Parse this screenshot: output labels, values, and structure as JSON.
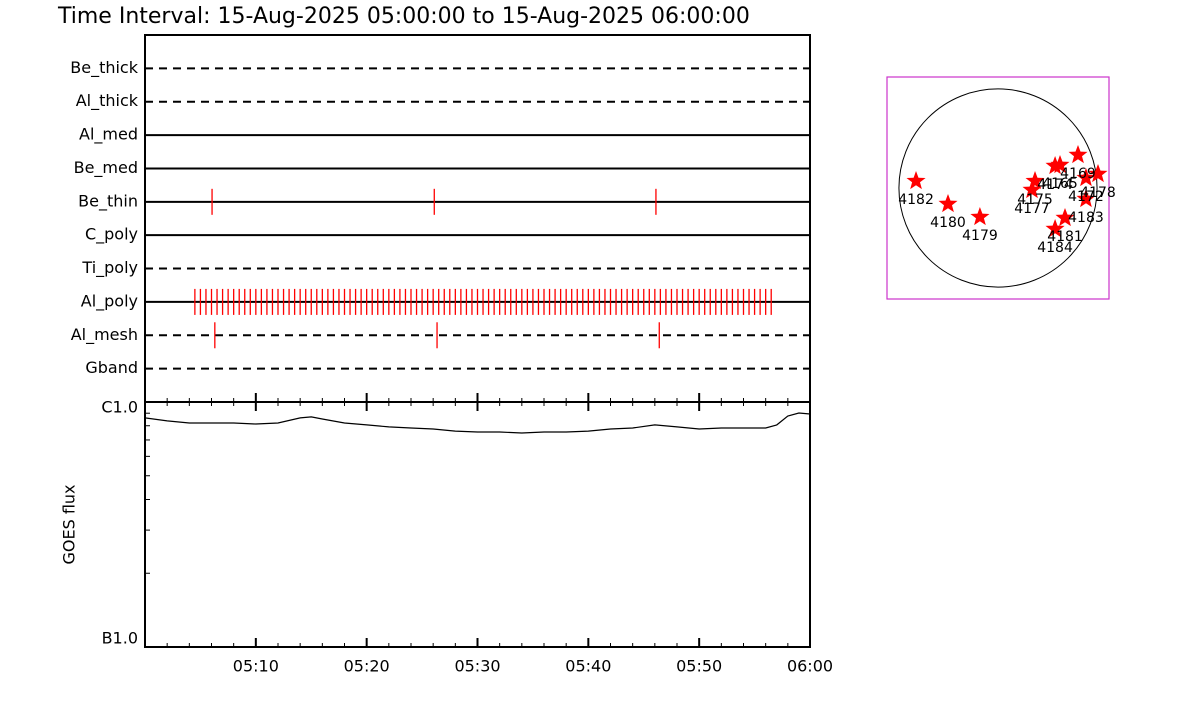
{
  "chart_data": [
    {
      "type": "timeline",
      "title": "Time Interval: 15-Aug-2025 05:00:00 to 15-Aug-2025 06:00:00",
      "xlim": [
        0,
        60
      ],
      "color": "#ff0000",
      "series": [
        {
          "name": "Be_thick",
          "line": "dashed",
          "x": []
        },
        {
          "name": "Al_thick",
          "line": "dashed",
          "x": []
        },
        {
          "name": "Al_med",
          "line": "solid",
          "x": []
        },
        {
          "name": "Be_med",
          "line": "solid",
          "x": []
        },
        {
          "name": "Be_thin",
          "line": "solid",
          "x": [
            6.05,
            26.1,
            46.1
          ]
        },
        {
          "name": "C_poly",
          "line": "solid",
          "x": []
        },
        {
          "name": "Ti_poly",
          "line": "dashed",
          "x": []
        },
        {
          "name": "Al_poly",
          "line": "solid",
          "x": [
            4.5,
            5,
            5.5,
            6,
            6.5,
            7,
            7.5,
            8,
            8.5,
            9,
            9.5,
            10,
            10.5,
            11,
            11.5,
            12,
            12.5,
            13,
            13.5,
            14,
            14.5,
            15,
            15.5,
            16,
            16.5,
            17,
            17.5,
            18,
            18.5,
            19,
            19.5,
            20,
            20.5,
            21,
            21.5,
            22,
            22.5,
            23,
            23.5,
            24,
            24.5,
            25,
            25.5,
            26,
            26.5,
            27,
            27.5,
            28,
            28.5,
            29,
            29.5,
            30,
            30.5,
            31,
            31.5,
            32,
            32.5,
            33,
            33.5,
            34,
            34.5,
            35,
            35.5,
            36,
            36.5,
            37,
            37.5,
            38,
            38.5,
            39,
            39.5,
            40,
            40.5,
            41,
            41.5,
            42,
            42.5,
            43,
            43.5,
            44,
            44.5,
            45,
            45.5,
            46,
            46.5,
            47,
            47.5,
            48,
            48.5,
            49,
            49.5,
            50,
            50.5,
            51,
            51.5,
            52,
            52.5,
            53,
            53.5,
            54,
            54.5,
            55,
            55.5,
            56,
            56.5
          ]
        },
        {
          "name": "Al_mesh",
          "line": "dashed",
          "x": [
            6.3,
            26.35,
            46.4
          ]
        },
        {
          "name": "Gband",
          "line": "dashed",
          "x": []
        }
      ]
    },
    {
      "type": "line",
      "ylabel": "GOES flux",
      "log_scale": true,
      "color": "#000000",
      "xlim": [
        0,
        60
      ],
      "xticks": [
        {
          "value": 10,
          "label": "05:10"
        },
        {
          "value": 20,
          "label": "05:20"
        },
        {
          "value": 30,
          "label": "05:30"
        },
        {
          "value": 40,
          "label": "05:40"
        },
        {
          "value": 50,
          "label": "05:50"
        },
        {
          "value": 60,
          "label": "06:00"
        }
      ],
      "xminorticks": [
        2,
        4,
        6,
        8,
        12,
        14,
        16,
        18,
        22,
        24,
        26,
        28,
        32,
        34,
        36,
        38,
        42,
        44,
        46,
        48,
        52,
        54,
        56,
        58
      ],
      "ylim": [
        1e-07,
        1e-06
      ],
      "yticks": [
        {
          "value": 1e-07,
          "label": "B1.0"
        },
        {
          "value": 1e-06,
          "label": "C1.0"
        }
      ],
      "yminorticks": [
        2e-07,
        3e-07,
        4e-07,
        5e-07,
        6e-07,
        7e-07,
        8e-07,
        9e-07
      ],
      "x": [
        0,
        2,
        4,
        6,
        8,
        10,
        12,
        14,
        15,
        16,
        18,
        20,
        22,
        24,
        26,
        28,
        30,
        32,
        34,
        36,
        38,
        40,
        42,
        44,
        46,
        48,
        50,
        52,
        54,
        56,
        57,
        58,
        59,
        60
      ],
      "values": [
        8.61e-07,
        8.37e-07,
        8.21e-07,
        8.21e-07,
        8.21e-07,
        8.13e-07,
        8.21e-07,
        8.61e-07,
        8.69e-07,
        8.52e-07,
        8.21e-07,
        8.06e-07,
        7.91e-07,
        7.83e-07,
        7.76e-07,
        7.61e-07,
        7.54e-07,
        7.54e-07,
        7.47e-07,
        7.54e-07,
        7.54e-07,
        7.61e-07,
        7.76e-07,
        7.83e-07,
        8.06e-07,
        7.91e-07,
        7.76e-07,
        7.83e-07,
        7.83e-07,
        7.83e-07,
        8.06e-07,
        8.77e-07,
        9.02e-07,
        8.93e-07
      ]
    },
    {
      "type": "scatter",
      "xlim": [
        -1070,
        1070
      ],
      "ylim": [
        -1070,
        1070
      ],
      "disk_radius": 955,
      "frame_color": "#cc33cc",
      "color": "#ff0000",
      "labels": [
        "4182",
        "4180",
        "4179",
        "4175",
        "4177",
        "4174",
        "4165",
        "4169",
        "4172",
        "4178",
        "4183",
        "4181",
        "4184"
      ],
      "x": [
        -790,
        -482,
        -174,
        357,
        328,
        550,
        598,
        771,
        848,
        964,
        848,
        646,
        550
      ],
      "values": [
        67,
        -154,
        -280,
        67,
        -19,
        212,
        222,
        318,
        96,
        135,
        -106,
        -289,
        -395
      ]
    }
  ]
}
